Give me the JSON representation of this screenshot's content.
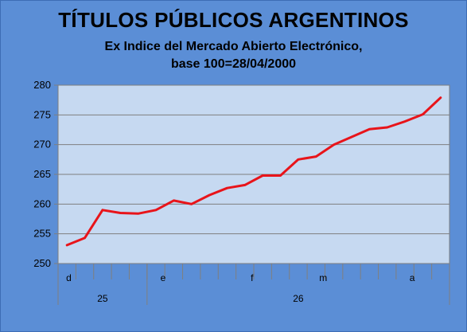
{
  "chart_data": {
    "type": "line",
    "title": "TÍTULOS PÚBLICOS ARGENTINOS",
    "subtitle_line1": "Ex Indice del Mercado Abierto Electrónico,",
    "subtitle_line2": "base 100=28/04/2000",
    "ylim": [
      250,
      280
    ],
    "yticks": [
      "250",
      "255",
      "260",
      "265",
      "270",
      "275",
      "280"
    ],
    "grid": true,
    "series_color": "#e8141a",
    "values": [
      253.1,
      254.3,
      259.0,
      258.5,
      258.4,
      259.0,
      260.6,
      260.0,
      261.5,
      262.7,
      263.2,
      264.8,
      264.8,
      267.5,
      268.0,
      270.0,
      271.3,
      272.6,
      272.9,
      273.9,
      275.1,
      277.9
    ],
    "month_labels": [
      "d",
      "e",
      "f",
      "m",
      "a"
    ],
    "year_labels": [
      "25",
      "26"
    ]
  },
  "colors": {
    "background": "#5b8ed6",
    "plot_area": "#c6d9f1",
    "gridline": "#7f7f7f"
  }
}
